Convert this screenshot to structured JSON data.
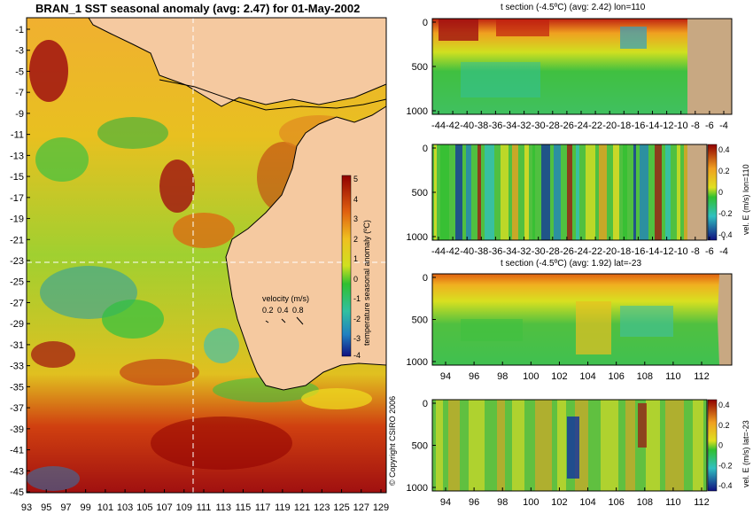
{
  "main_title": "BRAN_1 SST seasonal anomaly (avg: 2.47) for 01-May-2002",
  "map": {
    "lat_ticks": [
      "-1",
      "-3",
      "-5",
      "-7",
      "-9",
      "-11",
      "-13",
      "-15",
      "-17",
      "-19",
      "-21",
      "-23",
      "-25",
      "-27",
      "-29",
      "-31",
      "-33",
      "-35",
      "-37",
      "-39",
      "-41",
      "-43",
      "-45"
    ],
    "lon_ticks": [
      "93",
      "95",
      "97",
      "99",
      "101",
      "103",
      "105",
      "107",
      "109",
      "111",
      "113",
      "115",
      "117",
      "119",
      "121",
      "123",
      "125",
      "127",
      "129"
    ],
    "colorbar": {
      "label": "temperature seasonal anomaly (ºC)",
      "ticks": [
        "5",
        "4",
        "3",
        "2",
        "1",
        "0",
        "-1",
        "-2",
        "-3",
        "-4"
      ],
      "range": [
        -4,
        5
      ]
    },
    "velocity_legend": {
      "title": "velocity (m/s)",
      "values": [
        "0.2",
        "0.4",
        "0.8"
      ]
    },
    "section_lines": {
      "lon": 110,
      "lat": -23
    }
  },
  "copyright": "© Copyright CSIRO 2006",
  "panels": {
    "t_lon": {
      "title": "t section (-4.5ºC) (avg: 2.42) lon=110",
      "y_ticks": [
        "0",
        "500",
        "1000"
      ],
      "x_ticks": [
        "-44",
        "-42",
        "-40",
        "-38",
        "-36",
        "-34",
        "-32",
        "-30",
        "-28",
        "-26",
        "-24",
        "-22",
        "-20",
        "-18",
        "-16",
        "-14",
        "-12",
        "-10",
        "-8",
        "-6",
        "-4"
      ]
    },
    "v_lon": {
      "y_ticks": [
        "0",
        "500",
        "1000"
      ],
      "x_ticks": [
        "-44",
        "-42",
        "-40",
        "-38",
        "-36",
        "-34",
        "-32",
        "-30",
        "-28",
        "-26",
        "-24",
        "-22",
        "-20",
        "-18",
        "-16",
        "-14",
        "-12",
        "-10",
        "-8",
        "-6",
        "-4"
      ],
      "colorbar_label": "vel. E (m/s) lon=110",
      "colorbar_ticks": [
        "0.4",
        "0.2",
        "0",
        "-0.2",
        "-0.4"
      ]
    },
    "t_lat": {
      "title": "t section (-4.5ºC) (avg: 1.92) lat=-23",
      "y_ticks": [
        "0",
        "500",
        "1000"
      ],
      "x_ticks": [
        "94",
        "96",
        "98",
        "100",
        "102",
        "104",
        "106",
        "108",
        "110",
        "112"
      ]
    },
    "v_lat": {
      "y_ticks": [
        "0",
        "500",
        "1000"
      ],
      "x_ticks": [
        "94",
        "96",
        "98",
        "100",
        "102",
        "104",
        "106",
        "108",
        "110",
        "112"
      ],
      "colorbar_label": "vel. E (m/s) lat=-23",
      "colorbar_ticks": [
        "0.4",
        "0.2",
        "0",
        "-0.2",
        "-0.4"
      ]
    }
  },
  "colors": {
    "land": "#f5c9a0",
    "land_section": "#c8a882",
    "warm": "#a01010",
    "orange": "#f0a020",
    "yellow": "#f0e020",
    "green": "#30c030",
    "cyan": "#30c0c0",
    "blue": "#1030a0"
  }
}
